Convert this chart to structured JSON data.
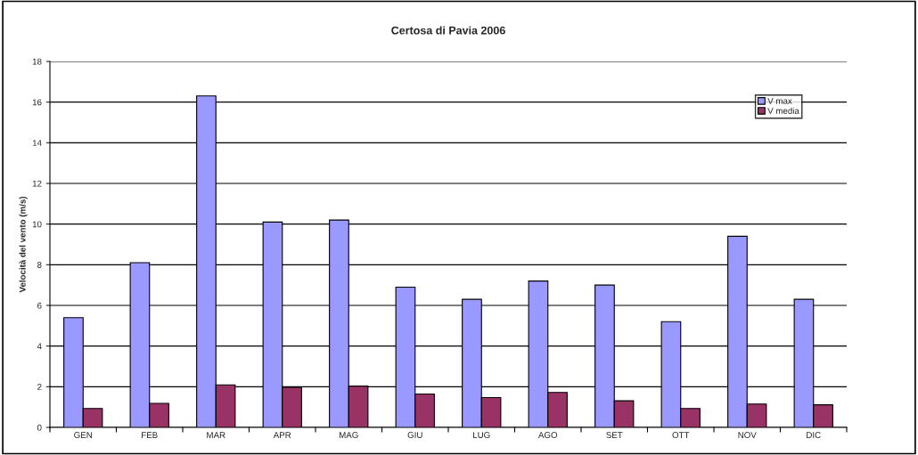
{
  "chart_data": {
    "type": "bar",
    "title": "Certosa di Pavia 2006",
    "ylabel": "Velocità del vento (m/s)",
    "categories": [
      "GEN",
      "FEB",
      "MAR",
      "APR",
      "MAG",
      "GIU",
      "LUG",
      "AGO",
      "SET",
      "OTT",
      "NOV",
      "DIC"
    ],
    "series": [
      {
        "name": "V max",
        "color": "#9999ff",
        "values": [
          5.4,
          8.1,
          16.3,
          10.1,
          10.2,
          6.9,
          6.3,
          7.2,
          7.0,
          5.2,
          9.4,
          6.3
        ]
      },
      {
        "name": "V media",
        "color": "#993366",
        "values": [
          0.93,
          1.18,
          2.09,
          1.97,
          2.03,
          1.64,
          1.47,
          1.72,
          1.31,
          0.93,
          1.15,
          1.11
        ]
      }
    ],
    "ylim": [
      0,
      18
    ],
    "yticks": [
      0,
      2,
      4,
      6,
      8,
      10,
      12,
      14,
      16,
      18
    ],
    "grid": "y",
    "legend": "top right"
  }
}
